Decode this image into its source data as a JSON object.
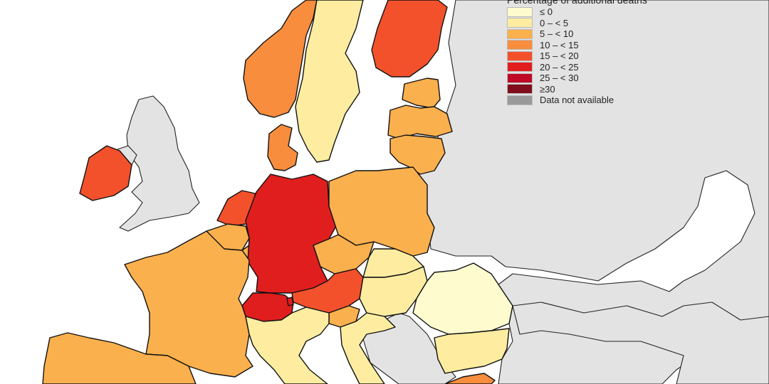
{
  "legend": {
    "title": "Percentage of additional deaths",
    "items": [
      {
        "label": "≤ 0",
        "color": "#fefbcf"
      },
      {
        "label": "0 – < 5",
        "color": "#feeda0"
      },
      {
        "label": "5 – < 10",
        "color": "#fbb04e"
      },
      {
        "label": "10 – < 15",
        "color": "#f78d3d"
      },
      {
        "label": "15 – < 20",
        "color": "#f3512c"
      },
      {
        "label": "20 – < 25",
        "color": "#e01e1e"
      },
      {
        "label": "25 – < 30",
        "color": "#be0a26"
      },
      {
        "label": "≥30",
        "color": "#800d1b"
      },
      {
        "label": "Data not available",
        "color": "#9a9a9a"
      }
    ]
  },
  "map_colors": {
    "non_member": "#e3e3e3",
    "sea": "#ffffff",
    "border": "#111111"
  },
  "regions": [
    {
      "name": "norway",
      "class": "10 – < 15"
    },
    {
      "name": "sweden",
      "class": "0 – < 5"
    },
    {
      "name": "finland",
      "class": "15 – < 20"
    },
    {
      "name": "estonia",
      "class": "5 – < 10"
    },
    {
      "name": "latvia",
      "class": "5 – < 10"
    },
    {
      "name": "lithuania",
      "class": "5 – < 10"
    },
    {
      "name": "denmark",
      "class": "10 – < 15"
    },
    {
      "name": "ireland",
      "class": "15 – < 20"
    },
    {
      "name": "netherlands",
      "class": "15 – < 20"
    },
    {
      "name": "belgium",
      "class": "5 – < 10"
    },
    {
      "name": "luxembourg",
      "class": "5 – < 10"
    },
    {
      "name": "germany",
      "class": "20 – < 25"
    },
    {
      "name": "poland",
      "class": "5 – < 10"
    },
    {
      "name": "czechia",
      "class": "5 – < 10"
    },
    {
      "name": "slovakia",
      "class": "0 – < 5"
    },
    {
      "name": "austria",
      "class": "15 – < 20"
    },
    {
      "name": "switzerland",
      "class": "20 – < 25"
    },
    {
      "name": "liechtenstein",
      "class": "20 – < 25"
    },
    {
      "name": "hungary",
      "class": "0 – < 5"
    },
    {
      "name": "slovenia",
      "class": "5 – < 10"
    },
    {
      "name": "croatia",
      "class": "0 – < 5"
    },
    {
      "name": "romania",
      "class": "≤ 0"
    },
    {
      "name": "bulgaria",
      "class": "0 – < 5"
    },
    {
      "name": "france",
      "class": "5 – < 10"
    },
    {
      "name": "italy",
      "class": "0 – < 5"
    },
    {
      "name": "spain",
      "class": "5 – < 10"
    },
    {
      "name": "greece",
      "class": "10 – < 15"
    }
  ]
}
